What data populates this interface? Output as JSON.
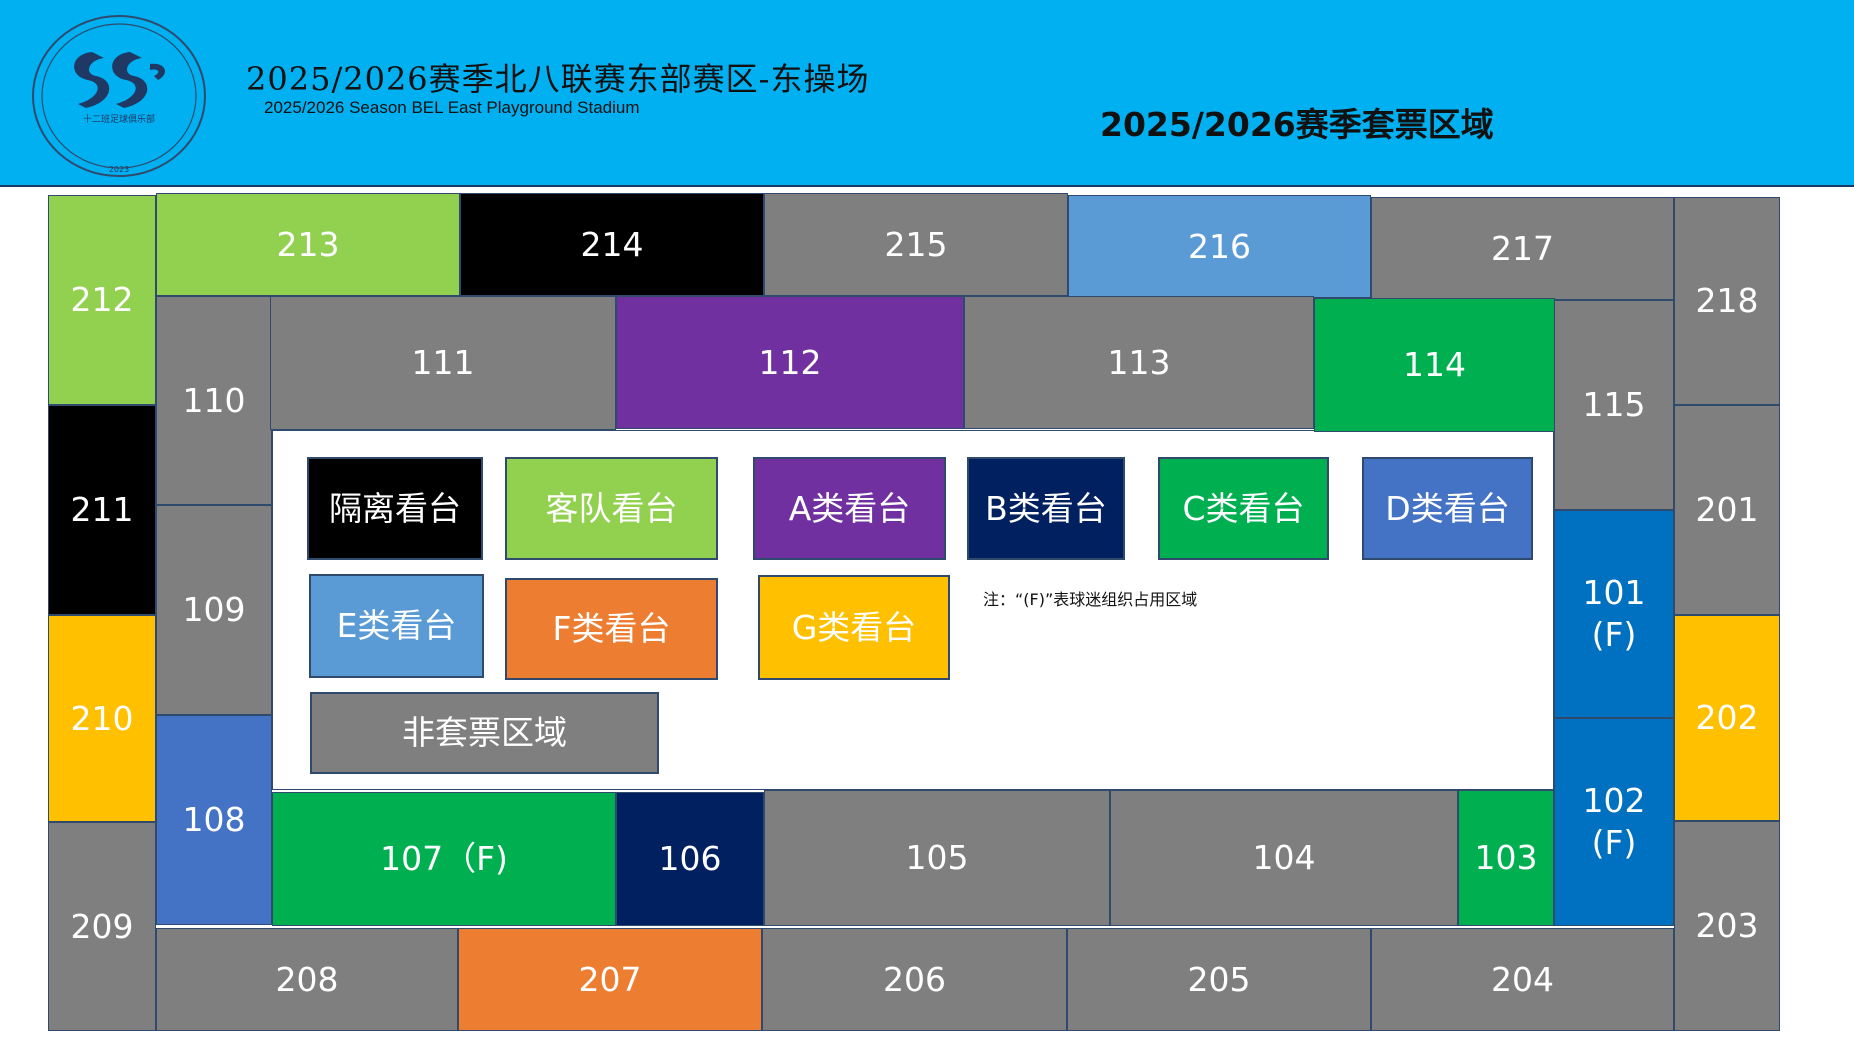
{
  "header": {
    "logo_text": "十二班足球俱乐部",
    "logo_year": "2023",
    "title_cn": "2025/2026赛季北八联赛东部赛区-东操场",
    "title_en": "2025/2026 Season BEL East Playground Stadium",
    "title_right": "2025/2026赛季套票区域"
  },
  "colors": {
    "banner": "#00b0f0",
    "gray": "#7f7f7f",
    "black": "#000000",
    "light_green": "#92d050",
    "green": "#00b050",
    "purple": "#7030a0",
    "navy": "#002060",
    "royal_blue": "#4472c4",
    "light_blue": "#5b9bd5",
    "blue": "#0070c0",
    "orange": "#ed7d31",
    "gold": "#ffc000"
  },
  "sections": {
    "s101": "101",
    "s101_f": "(F)",
    "s102": "102",
    "s102_f": "(F)",
    "s103": "103",
    "s104": "104",
    "s105": "105",
    "s106": "106",
    "s107": "107（F)",
    "s108": "108",
    "s109": "109",
    "s110": "110",
    "s111": "111",
    "s112": "112",
    "s113": "113",
    "s114": "114",
    "s115": "115",
    "s201": "201",
    "s202": "202",
    "s203": "203",
    "s204": "204",
    "s205": "205",
    "s206": "206",
    "s207": "207",
    "s208": "208",
    "s209": "209",
    "s210": "210",
    "s211": "211",
    "s212": "212",
    "s213": "213",
    "s214": "214",
    "s215": "215",
    "s216": "216",
    "s217": "217",
    "s218": "218"
  },
  "legend": {
    "isolation": "隔离看台",
    "away": "客队看台",
    "a": "A类看台",
    "b": "B类看台",
    "c": "C类看台",
    "d": "D类看台",
    "e": "E类看台",
    "f": "F类看台",
    "g": "G类看台",
    "non_season": "非套票区域"
  },
  "note": "注：“(F)”表球迷组织占用区域"
}
